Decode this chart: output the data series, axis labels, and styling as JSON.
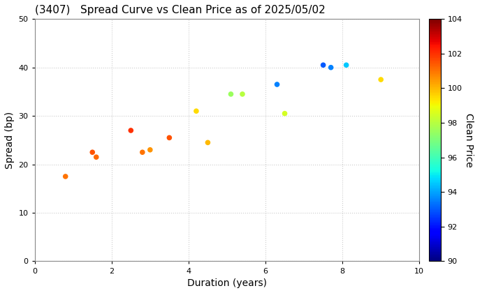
{
  "title": "(3407)   Spread Curve vs Clean Price as of 2025/05/02",
  "xlabel": "Duration (years)",
  "ylabel": "Spread (bp)",
  "colorbar_label": "Clean Price",
  "xlim": [
    0,
    10
  ],
  "ylim": [
    0,
    50
  ],
  "xticks": [
    0,
    2,
    4,
    6,
    8,
    10
  ],
  "yticks": [
    0,
    10,
    20,
    30,
    40,
    50
  ],
  "cmap_min": 90,
  "cmap_max": 104,
  "colorbar_ticks": [
    90,
    92,
    94,
    96,
    98,
    100,
    102,
    104
  ],
  "points": [
    {
      "duration": 0.8,
      "spread": 17.5,
      "price": 101.0
    },
    {
      "duration": 1.5,
      "spread": 22.5,
      "price": 101.5
    },
    {
      "duration": 1.6,
      "spread": 21.5,
      "price": 101.2
    },
    {
      "duration": 2.5,
      "spread": 27.0,
      "price": 102.0
    },
    {
      "duration": 2.8,
      "spread": 22.5,
      "price": 101.0
    },
    {
      "duration": 3.0,
      "spread": 23.0,
      "price": 100.5
    },
    {
      "duration": 3.5,
      "spread": 25.5,
      "price": 101.5
    },
    {
      "duration": 4.2,
      "spread": 31.0,
      "price": 99.5
    },
    {
      "duration": 4.5,
      "spread": 24.5,
      "price": 100.0
    },
    {
      "duration": 5.1,
      "spread": 34.5,
      "price": 97.5
    },
    {
      "duration": 5.4,
      "spread": 34.5,
      "price": 98.0
    },
    {
      "duration": 6.3,
      "spread": 36.5,
      "price": 93.5
    },
    {
      "duration": 6.5,
      "spread": 30.5,
      "price": 98.5
    },
    {
      "duration": 7.5,
      "spread": 40.5,
      "price": 93.0
    },
    {
      "duration": 7.7,
      "spread": 40.0,
      "price": 93.5
    },
    {
      "duration": 8.1,
      "spread": 40.5,
      "price": 94.5
    },
    {
      "duration": 9.0,
      "spread": 37.5,
      "price": 99.5
    }
  ],
  "background_color": "#ffffff",
  "grid_color": "#cccccc",
  "marker_size": 30,
  "title_fontsize": 11,
  "label_fontsize": 10
}
